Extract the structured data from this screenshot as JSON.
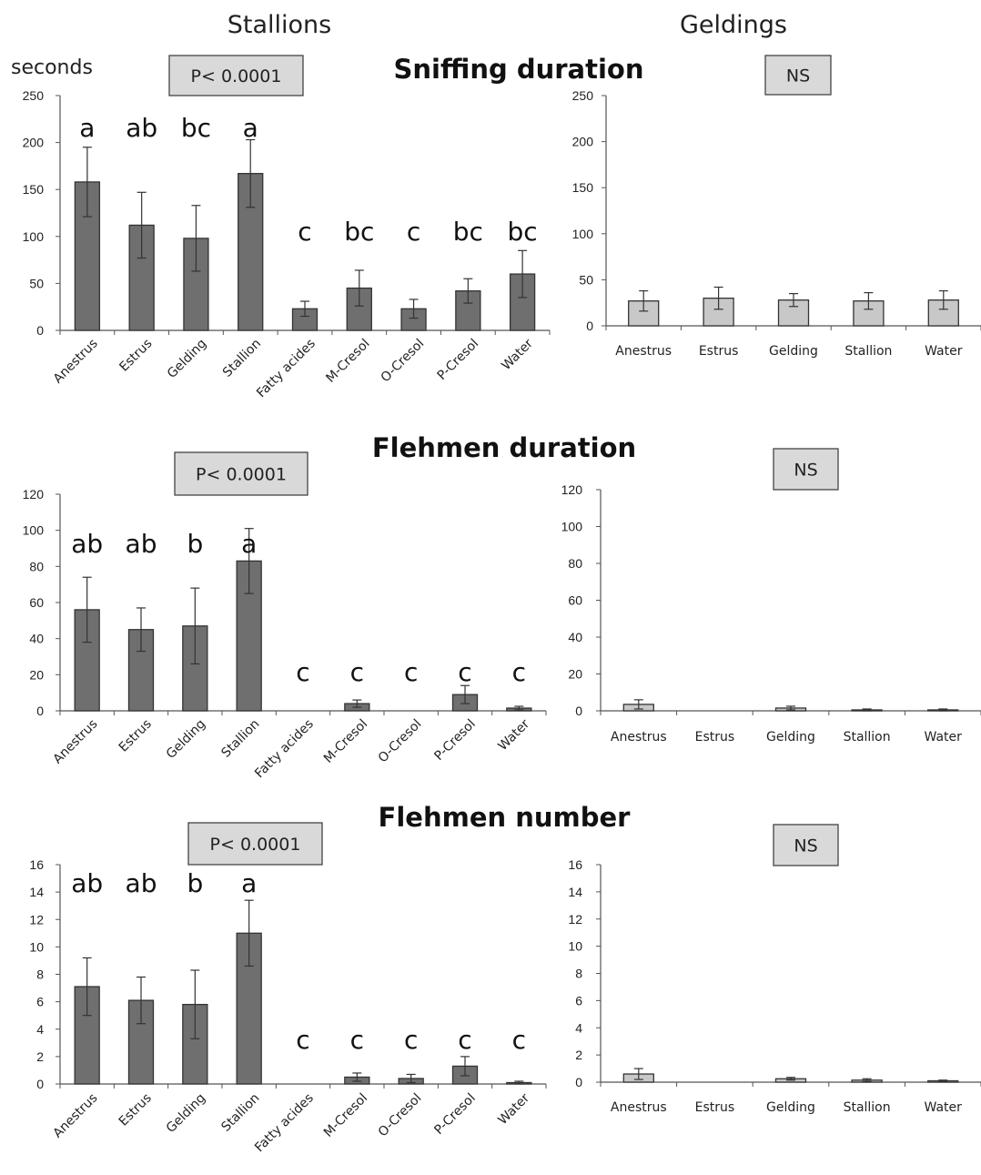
{
  "header": {
    "left_title": "Stallions",
    "right_title": "Geldings"
  },
  "colors": {
    "stallion_bar": "#6f6f6f",
    "gelding_bar": "#c8c8c8",
    "box_fill": "#d9d9d9"
  },
  "chart_data": [
    {
      "type": "bar",
      "title": "Sniffing duration",
      "ylabel": "seconds",
      "ylim": [
        0,
        250
      ],
      "ytick_labels": [
        "0",
        "50",
        "100",
        "150",
        "200",
        "250"
      ],
      "stat_label": "P< 0.0001",
      "categories": [
        "Anestrus",
        "Estrus",
        "Gelding",
        "Stallion",
        "Fatty acides",
        "M-Cresol",
        "O-Cresol",
        "P-Cresol",
        "Water"
      ],
      "values": [
        158,
        112,
        98,
        167,
        23,
        45,
        23,
        42,
        60
      ],
      "errors": [
        37,
        35,
        35,
        36,
        8,
        19,
        10,
        13,
        25
      ],
      "letters": [
        "a",
        "ab",
        "bc",
        "a",
        "c",
        "bc",
        "c",
        "bc",
        "bc"
      ]
    },
    {
      "type": "bar",
      "title": "",
      "ylim": [
        0,
        250
      ],
      "ytick_labels": [
        "0",
        "50",
        "100",
        "150",
        "200",
        "250"
      ],
      "stat_label": "NS",
      "categories": [
        "Anestrus",
        "Estrus",
        "Gelding",
        "Stallion",
        "Water"
      ],
      "values": [
        27,
        30,
        28,
        27,
        28
      ],
      "errors": [
        11,
        12,
        7,
        9,
        10
      ]
    },
    {
      "type": "bar",
      "title": "Flehmen duration",
      "ylim": [
        0,
        120
      ],
      "ytick_labels": [
        "0",
        "20",
        "40",
        "60",
        "80",
        "100",
        "120"
      ],
      "stat_label": "P< 0.0001",
      "categories": [
        "Anestrus",
        "Estrus",
        "Gelding",
        "Stallion",
        "Fatty acides",
        "M-Cresol",
        "O-Cresol",
        "P-Cresol",
        "Water"
      ],
      "values": [
        56,
        45,
        47,
        83,
        0,
        4,
        0,
        9,
        1.5
      ],
      "errors": [
        18,
        12,
        21,
        18,
        0,
        2,
        0,
        5,
        1
      ],
      "letters": [
        "ab",
        "ab",
        "b",
        "a",
        "c",
        "c",
        "c",
        "c",
        "c"
      ]
    },
    {
      "type": "bar",
      "title": "",
      "ylim": [
        0,
        120
      ],
      "ytick_labels": [
        "0",
        "20",
        "40",
        "60",
        "80",
        "100",
        "120"
      ],
      "stat_label": "NS",
      "categories": [
        "Anestrus",
        "Estrus",
        "Gelding",
        "Stallion",
        "Water"
      ],
      "values": [
        3.5,
        0,
        1.5,
        0.5,
        0.5
      ],
      "errors": [
        2.5,
        0,
        1,
        0.5,
        0.5
      ]
    },
    {
      "type": "bar",
      "title": "Flehmen number",
      "ylim": [
        0,
        16
      ],
      "ytick_labels": [
        "0",
        "2",
        "4",
        "6",
        "8",
        "10",
        "12",
        "14",
        "16"
      ],
      "stat_label": "P< 0.0001",
      "categories": [
        "Anestrus",
        "Estrus",
        "Gelding",
        "Stallion",
        "Fatty acides",
        "M-Cresol",
        "O-Cresol",
        "P-Cresol",
        "Water"
      ],
      "values": [
        7.1,
        6.1,
        5.8,
        11.0,
        0,
        0.5,
        0.4,
        1.3,
        0.1
      ],
      "errors": [
        2.1,
        1.7,
        2.5,
        2.4,
        0,
        0.3,
        0.3,
        0.7,
        0.1
      ],
      "letters": [
        "ab",
        "ab",
        "b",
        "a",
        "c",
        "c",
        "c",
        "c",
        "c"
      ]
    },
    {
      "type": "bar",
      "title": "",
      "ylim": [
        0,
        16
      ],
      "ytick_labels": [
        "0",
        "2",
        "4",
        "6",
        "8",
        "10",
        "12",
        "14",
        "16"
      ],
      "stat_label": "NS",
      "categories": [
        "Anestrus",
        "Estrus",
        "Gelding",
        "Stallion",
        "Water"
      ],
      "values": [
        0.6,
        0,
        0.25,
        0.15,
        0.1
      ],
      "errors": [
        0.4,
        0,
        0.1,
        0.1,
        0.05
      ]
    }
  ]
}
